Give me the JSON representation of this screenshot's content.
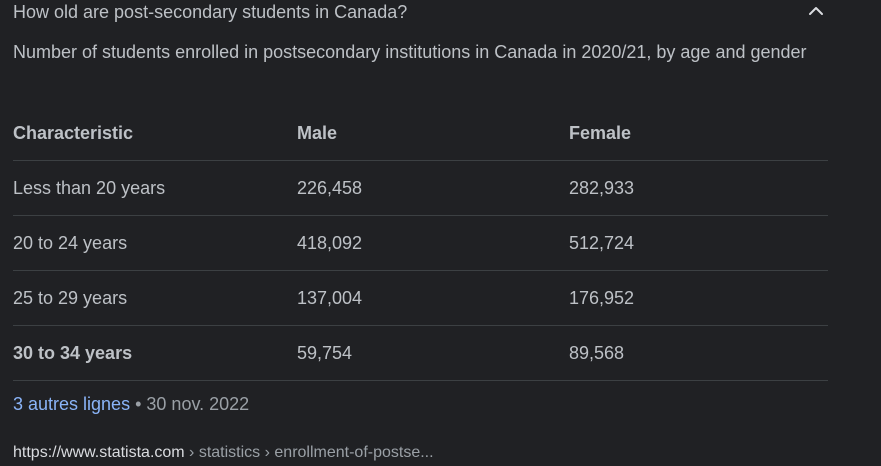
{
  "question": "How old are post-secondary students in Canada?",
  "description": "Number of students enrolled in postsecondary institutions in Canada in 2020/21, by age and gender",
  "table": {
    "headers": [
      "Characteristic",
      "Male",
      "Female"
    ],
    "rows": [
      [
        "Less than 20 years",
        "226,458",
        "282,933"
      ],
      [
        "20 to 24 years",
        "418,092",
        "512,724"
      ],
      [
        "25 to 29 years",
        "137,004",
        "176,952"
      ],
      [
        "30 to 34 years",
        "59,754",
        "89,568"
      ]
    ]
  },
  "more": {
    "link_label": "3 autres lignes",
    "separator": "•",
    "date": "30 nov. 2022"
  },
  "source": {
    "domain": "https://www.statista.com",
    "path": " › statistics › enrollment-of-postse..."
  },
  "icons": {
    "chevron": "chevron-up-icon"
  },
  "colors": {
    "background": "#202124",
    "text": "#bdc1c6",
    "link": "#8ab4f8",
    "muted": "#9aa0a6",
    "divider": "#3c4043"
  }
}
